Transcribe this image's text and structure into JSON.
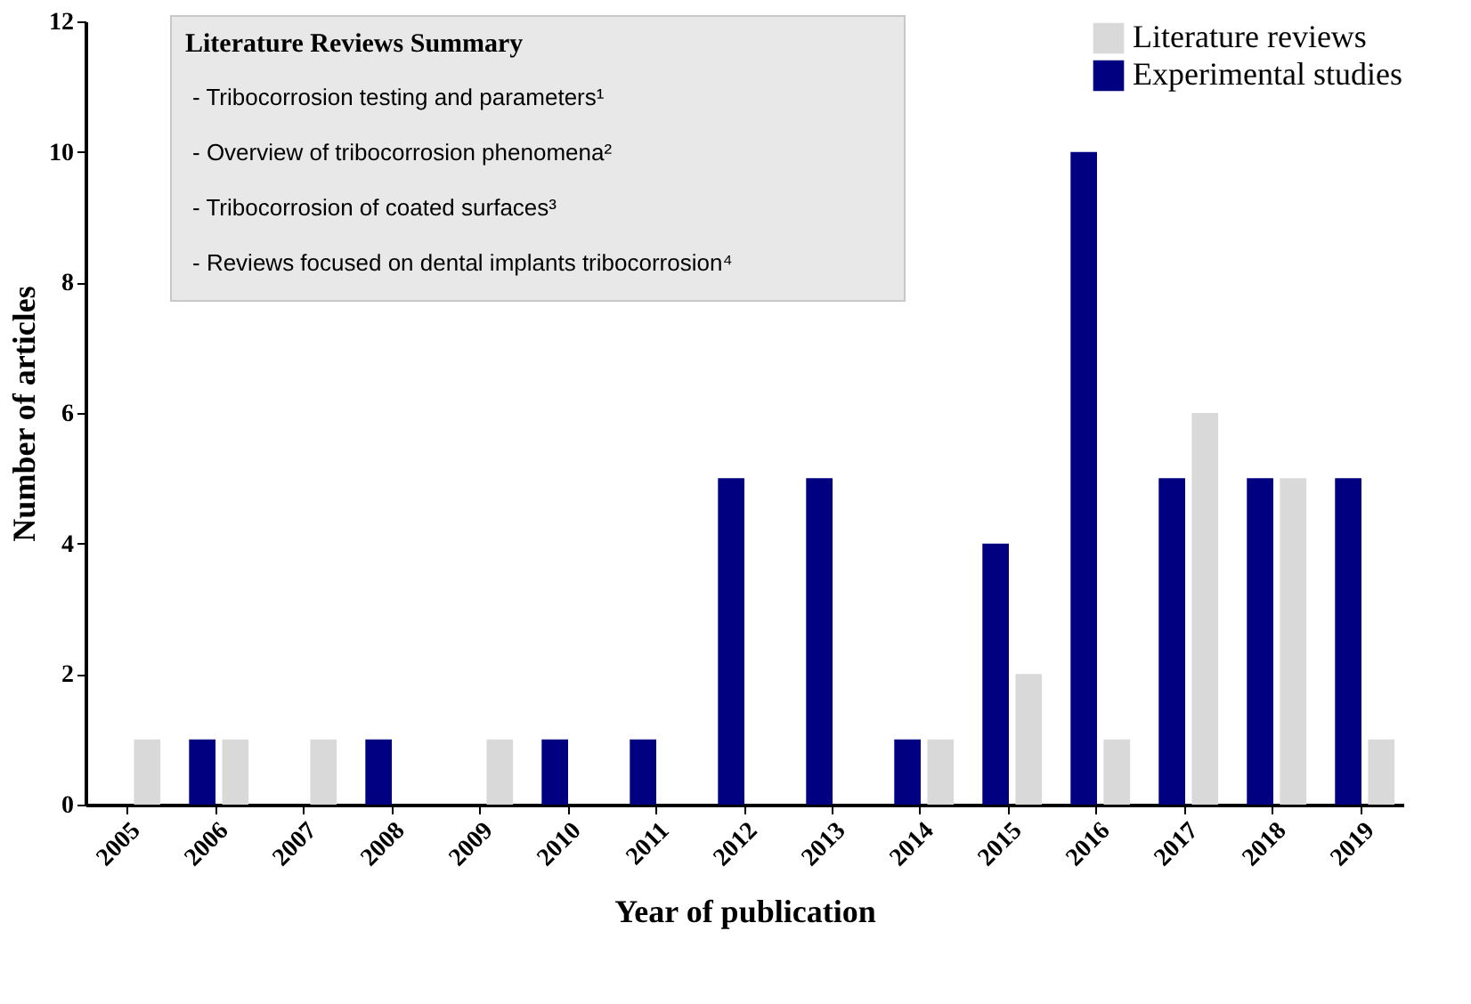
{
  "chart_data": {
    "type": "bar",
    "xlabel": "Year of publication",
    "ylabel": "Number of articles",
    "categories": [
      "2005",
      "2006",
      "2007",
      "2008",
      "2009",
      "2010",
      "2011",
      "2012",
      "2013",
      "2014",
      "2015",
      "2016",
      "2017",
      "2018",
      "2019"
    ],
    "series": [
      {
        "name": "Literature reviews",
        "color": "#d9d9d9",
        "values": [
          1,
          1,
          1,
          0,
          1,
          0,
          0,
          0,
          0,
          1,
          2,
          1,
          6,
          5,
          1
        ]
      },
      {
        "name": "Experimental studies",
        "color": "#000080",
        "values": [
          0,
          1,
          0,
          1,
          0,
          1,
          1,
          5,
          5,
          1,
          4,
          10,
          5,
          5,
          5
        ]
      }
    ],
    "ylim": [
      0,
      12
    ],
    "yticks": [
      0,
      2,
      4,
      6,
      8,
      10,
      12
    ],
    "grid": false,
    "legend": "top right",
    "annotations": [
      "Literature  Reviews Summary",
      "- Tribocorrosion testing and parameters¹",
      "- Overview  of tribocorrosion phenomena²",
      "- Tribocorrosion of coated surfaces³",
      "- Reviews focused on dental implants tribocorrosion⁴"
    ]
  }
}
